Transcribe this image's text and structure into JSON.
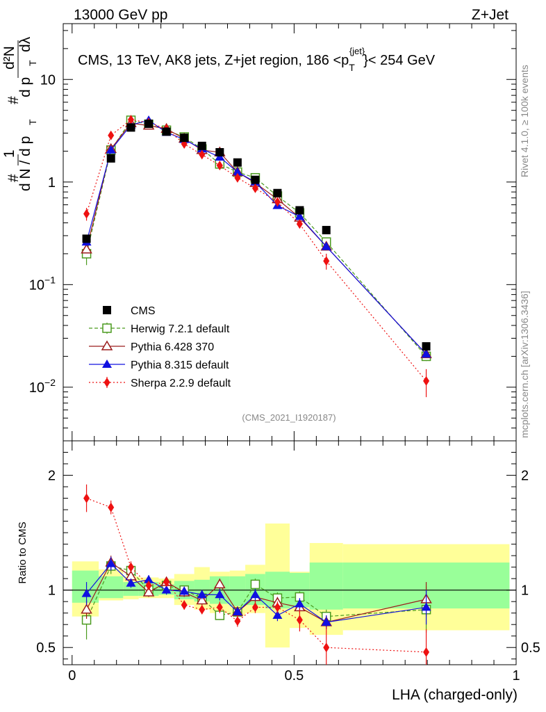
{
  "header": {
    "left": "13000 GeV pp",
    "right": "Z+Jet",
    "plot_title": "CMS, 13 TeV, AK8 jets, Z+jet region, 186 <p",
    "plot_title_sup": "{jet}",
    "plot_title_sub": "T",
    "plot_title_end": "}< 254 GeV",
    "watermark": "(CMS_2021_I1920187)",
    "side_rivet": "Rivet 4.1.0, ≥ 100k events",
    "side_mcplots": "mcplots.cern.ch [arXiv:1306.3436]"
  },
  "chart_data": [
    {
      "type": "line",
      "panel": "main",
      "yscale": "log",
      "ylim": [
        0.003,
        35
      ],
      "xlim": [
        -0.02,
        1.0
      ],
      "ylabel_parts": [
        "#",
        "1",
        "d N / d p",
        "T",
        "#",
        "d²N",
        "d p",
        "T",
        "dλ"
      ],
      "yticks": [
        {
          "v": 0.01,
          "label": "10",
          "sup": "−2"
        },
        {
          "v": 0.1,
          "label": "10",
          "sup": "−1"
        },
        {
          "v": 1,
          "label": "1"
        },
        {
          "v": 10,
          "label": "10"
        }
      ],
      "x": [
        0.0325,
        0.0875,
        0.1325,
        0.1725,
        0.2125,
        0.2525,
        0.2925,
        0.3325,
        0.3725,
        0.4125,
        0.4625,
        0.5125,
        0.5725,
        0.7975
      ],
      "series": [
        {
          "name": "CMS",
          "color": "#000000",
          "marker": "square-filled",
          "line": "none",
          "values": [
            0.28,
            1.7,
            3.4,
            3.7,
            3.1,
            2.7,
            2.25,
            1.95,
            1.55,
            1.05,
            0.78,
            0.53,
            0.34,
            0.025
          ]
        },
        {
          "name": "Herwig 7.2.1 default",
          "color": "#4a9a1e",
          "marker": "square-open",
          "line": "dashed",
          "values": [
            0.2,
            2.05,
            4.0,
            3.65,
            3.2,
            2.75,
            2.1,
            1.5,
            1.25,
            1.1,
            0.73,
            0.5,
            0.26,
            0.02
          ],
          "err": [
            0.045,
            0.12,
            0.15,
            0.12,
            0.1,
            0.08,
            0.07,
            0.05,
            0.04,
            0.04,
            0.03,
            0.02,
            0.02,
            0.002
          ]
        },
        {
          "name": "Pythia 6.428 370",
          "color": "#9b1c1c",
          "marker": "triangle-open",
          "line": "solid",
          "values": [
            0.22,
            2.1,
            3.75,
            3.55,
            3.3,
            2.65,
            2.05,
            1.95,
            1.25,
            0.98,
            0.68,
            0.45,
            0.235,
            0.021
          ]
        },
        {
          "name": "Pythia 8.315 default",
          "color": "#1010e0",
          "marker": "triangle-filled",
          "line": "solid",
          "values": [
            0.26,
            2.05,
            3.6,
            4.0,
            3.05,
            2.6,
            2.1,
            1.75,
            1.25,
            1.0,
            0.59,
            0.46,
            0.235,
            0.021
          ]
        },
        {
          "name": "Sherpa 2.2.9 default",
          "color": "#ee1111",
          "marker": "diamond-filled",
          "line": "dotted",
          "values": [
            0.49,
            2.85,
            4.05,
            3.8,
            3.3,
            2.35,
            1.85,
            1.45,
            1.1,
            0.87,
            0.64,
            0.39,
            0.17,
            0.0115
          ],
          "err": [
            0.07,
            0.15,
            0.15,
            0.12,
            0.1,
            0.08,
            0.07,
            0.06,
            0.05,
            0.04,
            0.04,
            0.03,
            0.03,
            0.0035
          ]
        }
      ]
    },
    {
      "type": "line",
      "panel": "ratio",
      "ylabel": "Ratio to CMS",
      "xlabel": "LHA (charged-only)",
      "ylim": [
        0.35,
        2.3
      ],
      "xlim": [
        -0.02,
        1.0
      ],
      "yticks": [
        {
          "v": 0.5,
          "label": "0.5"
        },
        {
          "v": 1,
          "label": "1"
        },
        {
          "v": 2,
          "label": "2"
        }
      ],
      "xticks": [
        {
          "v": 0,
          "label": "0"
        },
        {
          "v": 0.5,
          "label": "0.5"
        },
        {
          "v": 1,
          "label": "1"
        }
      ],
      "bin_edges": [
        0.0,
        0.06,
        0.115,
        0.15,
        0.195,
        0.23,
        0.275,
        0.31,
        0.355,
        0.39,
        0.435,
        0.49,
        0.535,
        0.61,
        0.985
      ],
      "band_stat": [
        [
          0.89,
          1.17
        ],
        [
          0.93,
          1.12
        ],
        [
          0.95,
          1.07
        ],
        [
          0.95,
          1.07
        ],
        [
          0.96,
          1.05
        ],
        [
          0.92,
          1.08
        ],
        [
          0.9,
          1.09
        ],
        [
          0.88,
          1.12
        ],
        [
          0.86,
          1.12
        ],
        [
          0.87,
          1.14
        ],
        [
          0.84,
          1.16
        ],
        [
          0.85,
          1.15
        ],
        [
          0.83,
          1.24
        ],
        [
          0.84,
          1.24
        ]
      ],
      "band_total": [
        [
          0.77,
          1.25
        ],
        [
          0.91,
          1.18
        ],
        [
          0.92,
          1.12
        ],
        [
          0.93,
          1.11
        ],
        [
          0.93,
          1.1
        ],
        [
          0.87,
          1.14
        ],
        [
          0.83,
          1.2
        ],
        [
          0.8,
          1.16
        ],
        [
          0.78,
          1.17
        ],
        [
          0.8,
          1.22
        ],
        [
          0.5,
          1.58
        ],
        [
          0.67,
          1.16
        ],
        [
          0.61,
          1.41
        ],
        [
          0.65,
          1.4
        ]
      ],
      "series": [
        {
          "name": "Herwig 7.2.1 default",
          "color": "#4a9a1e",
          "marker": "square-open",
          "line": "dashed",
          "values": [
            0.74,
            1.21,
            1.17,
            1.0,
            1.04,
            1.0,
            0.93,
            0.78,
            0.81,
            1.05,
            0.93,
            0.94,
            0.77,
            0.83
          ],
          "err": [
            0.17,
            0.07,
            0.05,
            0.04,
            0.04,
            0.04,
            0.04,
            0.04,
            0.04,
            0.05,
            0.05,
            0.05,
            0.06,
            0.2
          ]
        },
        {
          "name": "Pythia 6.428 370",
          "color": "#9b1c1c",
          "marker": "triangle-open",
          "line": "solid",
          "values": [
            0.83,
            1.24,
            1.12,
            0.98,
            1.07,
            0.98,
            0.91,
            1.05,
            0.81,
            0.94,
            0.89,
            0.85,
            0.72,
            0.92
          ],
          "err": [
            0.08,
            0.06,
            0.05,
            0.04,
            0.04,
            0.04,
            0.04,
            0.05,
            0.04,
            0.05,
            0.05,
            0.05,
            0.06,
            0.15
          ]
        },
        {
          "name": "Pythia 8.315 default",
          "color": "#1010e0",
          "marker": "triangle-filled",
          "line": "solid",
          "values": [
            0.97,
            1.23,
            1.06,
            1.09,
            1.0,
            0.99,
            0.96,
            0.96,
            0.81,
            0.96,
            0.78,
            0.88,
            0.72,
            0.85
          ],
          "err": [
            0.1,
            0.06,
            0.04,
            0.04,
            0.04,
            0.04,
            0.04,
            0.05,
            0.04,
            0.05,
            0.05,
            0.05,
            0.06,
            0.15
          ]
        },
        {
          "name": "Sherpa 2.2.9 default",
          "color": "#ee1111",
          "marker": "diamond-filled",
          "line": "dotted",
          "values": [
            1.8,
            1.72,
            1.2,
            1.04,
            1.07,
            0.87,
            0.83,
            0.85,
            0.73,
            0.85,
            0.85,
            0.74,
            0.5,
            0.46
          ],
          "err": [
            0.12,
            0.06,
            0.05,
            0.04,
            0.04,
            0.04,
            0.04,
            0.05,
            0.05,
            0.05,
            0.05,
            0.1,
            0.18,
            0.2
          ]
        }
      ]
    }
  ]
}
